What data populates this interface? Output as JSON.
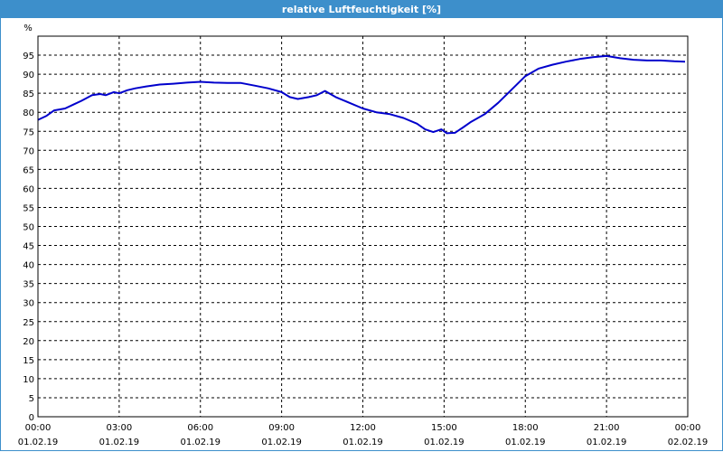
{
  "window": {
    "title": "relative Luftfeuchtigkeit [%]"
  },
  "colors": {
    "titlebar": "#3d8fcb",
    "line": "#0000cc",
    "grid": "#000000"
  },
  "chart_data": {
    "type": "line",
    "title": "relative Luftfeuchtigkeit [%]",
    "ylabel": "%",
    "xlabel": "",
    "ylim": [
      0,
      100
    ],
    "xlim_hours": [
      0,
      24
    ],
    "grid": true,
    "grid_style": "dashed",
    "y_ticks": [
      0,
      5,
      10,
      15,
      20,
      25,
      30,
      35,
      40,
      45,
      50,
      55,
      60,
      65,
      70,
      75,
      80,
      85,
      90,
      95
    ],
    "x_ticks": [
      {
        "time": "00:00",
        "date": "01.02.19"
      },
      {
        "time": "03:00",
        "date": "01.02.19"
      },
      {
        "time": "06:00",
        "date": "01.02.19"
      },
      {
        "time": "09:00",
        "date": "01.02.19"
      },
      {
        "time": "12:00",
        "date": "01.02.19"
      },
      {
        "time": "15:00",
        "date": "01.02.19"
      },
      {
        "time": "18:00",
        "date": "01.02.19"
      },
      {
        "time": "21:00",
        "date": "01.02.19"
      },
      {
        "time": "00:00",
        "date": "02.02.19"
      }
    ],
    "series": [
      {
        "values_x_hours": [
          0,
          0.3,
          0.6,
          1.0,
          1.3,
          1.6,
          2.0,
          2.3,
          2.5,
          2.8,
          3.0,
          3.3,
          3.6,
          4.0,
          4.5,
          5.0,
          5.5,
          6.0,
          6.5,
          7.0,
          7.5,
          8.0,
          8.5,
          9.0,
          9.3,
          9.6,
          10.0,
          10.3,
          10.6,
          11.0,
          11.5,
          12.0,
          12.5,
          13.0,
          13.5,
          14.0,
          14.3,
          14.6,
          14.9,
          15.1,
          15.4,
          15.7,
          16.0,
          16.5,
          17.0,
          17.5,
          18.0,
          18.5,
          19.0,
          19.5,
          20.0,
          20.5,
          21.0,
          21.5,
          22.0,
          22.5,
          23.0,
          23.5,
          23.9
        ],
        "values": [
          78,
          79,
          80.5,
          81,
          82,
          83,
          84.5,
          84.8,
          84.5,
          85.3,
          85,
          85.8,
          86.3,
          86.8,
          87.3,
          87.5,
          87.8,
          88,
          87.8,
          87.7,
          87.7,
          87,
          86.3,
          85.3,
          84,
          83.5,
          84,
          84.5,
          85.6,
          84,
          82.5,
          81,
          80,
          79.5,
          78.5,
          77,
          75.5,
          74.8,
          75.5,
          74.5,
          74.6,
          76,
          77.5,
          79.5,
          82.5,
          86,
          89.5,
          91.5,
          92.5,
          93.3,
          94,
          94.5,
          94.8,
          94.2,
          93.8,
          93.6,
          93.6,
          93.4,
          93.3
        ]
      }
    ]
  }
}
